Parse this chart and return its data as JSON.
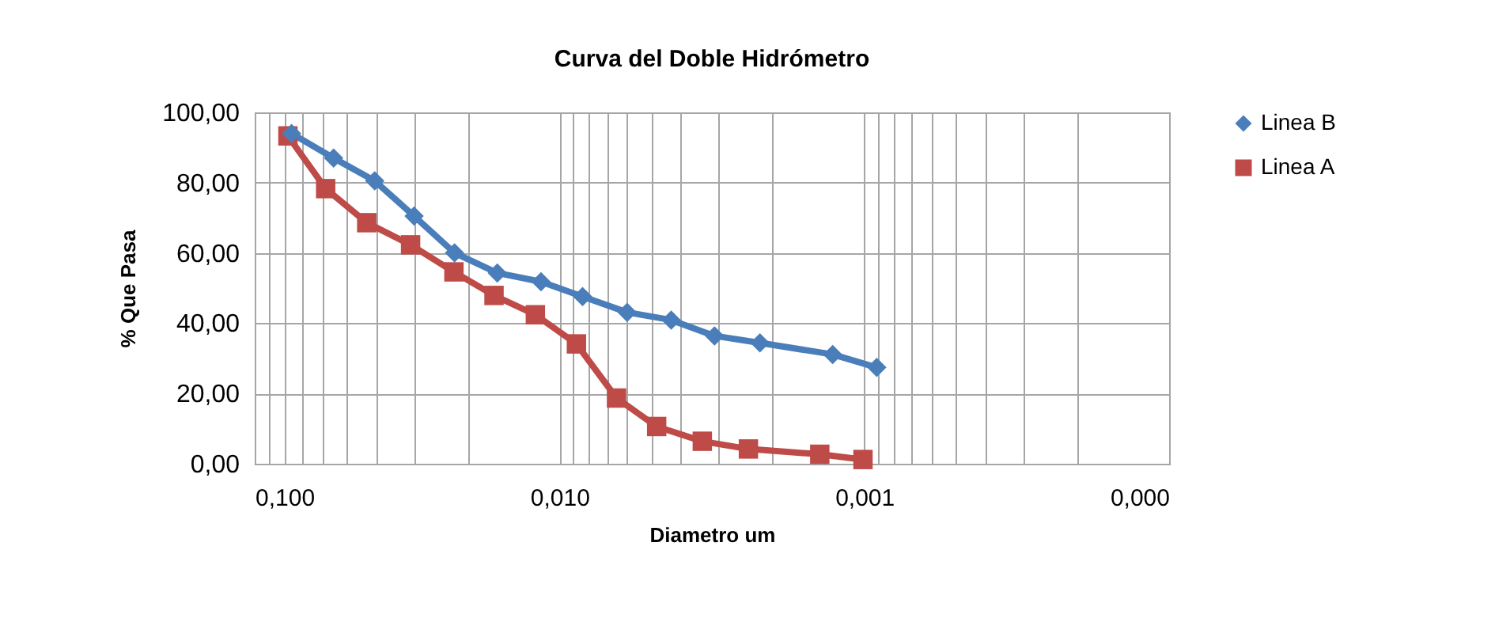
{
  "chart_data": {
    "type": "line",
    "title": "Curva del Doble Hidrómetro",
    "xlabel": "Diametro um",
    "ylabel": "% Que Pasa",
    "log": "x",
    "grid": true,
    "legend": "right",
    "line_style": "solid",
    "xlim": [
      0.1,
      0.0001
    ],
    "xticks": [
      {
        "value": 0.1,
        "label": "0,100"
      },
      {
        "value": 0.01,
        "label": "0,010"
      },
      {
        "value": 0.001,
        "label": "0,001"
      },
      {
        "value": 0.0001,
        "label": "0,000"
      }
    ],
    "ylim": [
      0,
      100
    ],
    "yticks": [
      {
        "value": 0,
        "label": "0,00"
      },
      {
        "value": 20,
        "label": "20,00"
      },
      {
        "value": 40,
        "label": "40,00"
      },
      {
        "value": 60,
        "label": "60,00"
      },
      {
        "value": 80,
        "label": "80,00"
      },
      {
        "value": 100,
        "label": "100,00"
      }
    ],
    "series": [
      {
        "name": "Linea B",
        "color": "#4a7ebb",
        "marker": "diamond",
        "x": [
          0.0757,
          0.0551,
          0.0404,
          0.03,
          0.0221,
          0.016,
          0.0115,
          0.0084,
          0.006,
          0.0043,
          0.0031,
          0.0022,
          0.00127,
          0.00091
        ],
        "values": [
          94.0,
          87.0,
          80.5,
          70.5,
          60.0,
          54.3,
          51.8,
          47.6,
          43.1,
          40.9,
          36.4,
          34.4,
          31.1,
          27.4
        ]
      },
      {
        "name": "Linea A",
        "color": "#be4b48",
        "marker": "square",
        "x": [
          0.0778,
          0.0585,
          0.0429,
          0.0308,
          0.0222,
          0.0164,
          0.012,
          0.0088,
          0.0065,
          0.0048,
          0.0034,
          0.0024,
          0.0014,
          0.00101
        ],
        "values": [
          93.3,
          78.3,
          68.6,
          62.3,
          54.6,
          47.9,
          42.4,
          34.1,
          18.7,
          10.6,
          6.4,
          4.2,
          2.7,
          1.2
        ]
      }
    ]
  }
}
